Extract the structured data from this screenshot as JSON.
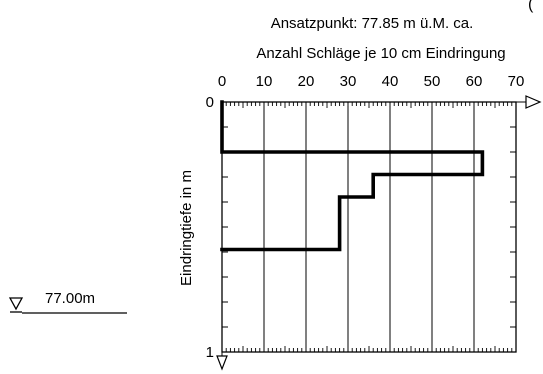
{
  "chart_data": {
    "type": "line",
    "corner_mark": "(",
    "header_line": "Ansatzpunkt:  77.85 m ü.M. ca.",
    "xlabel": "Anzahl Schläge je 10 cm Eindringung",
    "ylabel": "Eindringtiefe in m",
    "xlim": [
      0,
      70
    ],
    "ylim": [
      0,
      1
    ],
    "x_ticks": [
      0,
      10,
      20,
      30,
      40,
      50,
      60,
      70
    ],
    "y_ticks": [
      0,
      1
    ],
    "grid": true,
    "series": [
      {
        "steps": [
          {
            "x": 0,
            "depth_from": 0.0,
            "depth_to": 0.2
          },
          {
            "x": 62,
            "depth_from": 0.2,
            "depth_to": 0.29
          },
          {
            "x": 36,
            "depth_from": 0.29,
            "depth_to": 0.38
          },
          {
            "x": 28,
            "depth_from": 0.38,
            "depth_to": 0.59
          }
        ]
      }
    ],
    "water_level": {
      "label": "77.00m"
    }
  }
}
